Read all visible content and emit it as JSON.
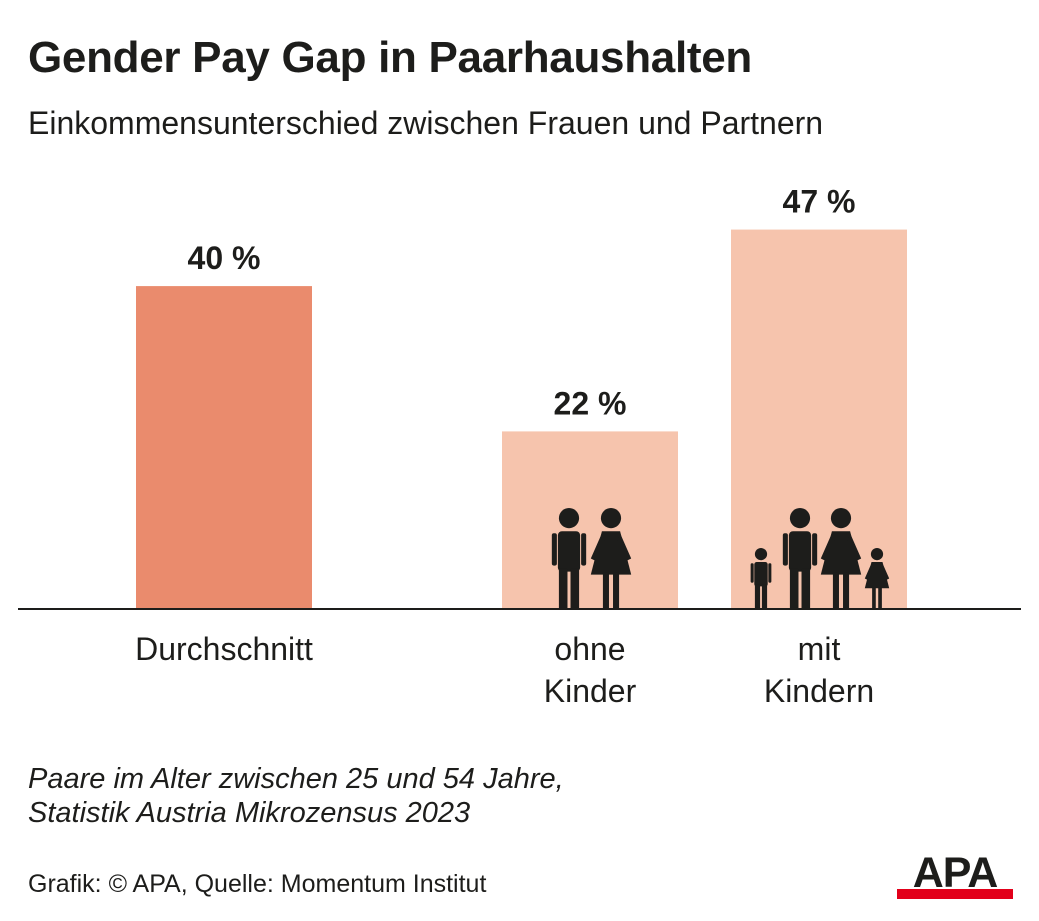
{
  "title": "Gender Pay Gap in Paarhaushalten",
  "subtitle": "Einkommensunterschied zwischen Frauen und Partnern",
  "chart_data": {
    "type": "bar",
    "categories": [
      "Durchschnitt",
      "ohne Kinder",
      "mit Kindern"
    ],
    "category_lines": [
      [
        "Durchschnitt"
      ],
      [
        "ohne",
        "Kinder"
      ],
      [
        "mit",
        "Kindern"
      ]
    ],
    "values": [
      40,
      22,
      47
    ],
    "value_labels": [
      "40 %",
      "22 %",
      "47 %"
    ],
    "unit": "%",
    "ylim": [
      0,
      55
    ],
    "grid": false,
    "legend": "none",
    "bar_colors": [
      "#ea8b6d",
      "#f6c4ad",
      "#f6c4ad"
    ],
    "bar_icons": [
      "",
      "couple-icon",
      "family-icon"
    ]
  },
  "footnote": {
    "line1": "Paare im Alter zwischen 25 und 54 Jahre,",
    "line2": "Statistik Austria Mikrozensus 2023"
  },
  "credit": "Grafik: © APA, Quelle: Momentum Institut",
  "logo_text": "APA",
  "colors": {
    "text": "#1d1d1b",
    "axis": "#1d1d1b",
    "icon": "#1d1d1b",
    "logo_bar": "#e2001a"
  }
}
